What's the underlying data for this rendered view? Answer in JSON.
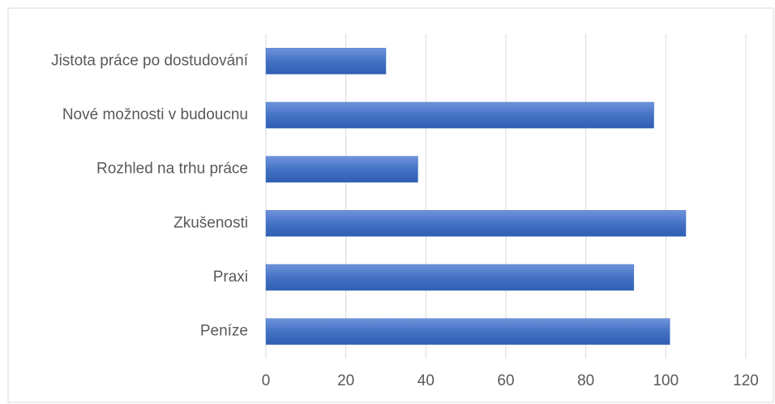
{
  "chart_data": {
    "type": "bar",
    "orientation": "horizontal",
    "categories": [
      "Jistota práce po dostudování",
      "Nové možnosti v budoucnu",
      "Rozhled na trhu práce",
      "Zkušenosti",
      "Praxi",
      "Peníze"
    ],
    "values": [
      30,
      97,
      38,
      105,
      92,
      101
    ],
    "color": "#4472c4",
    "xlim": [
      0,
      120
    ],
    "xticks": [
      0,
      20,
      40,
      60,
      80,
      100,
      120
    ],
    "grid": true
  }
}
